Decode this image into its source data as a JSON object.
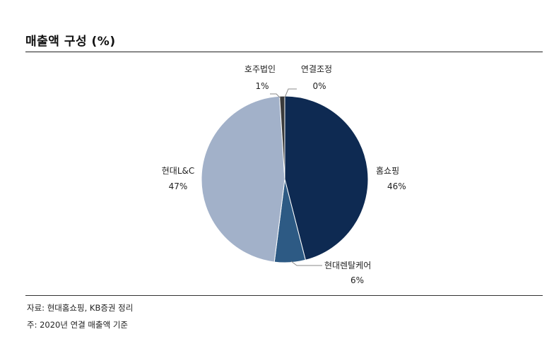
{
  "header": {
    "title": "매출액 구성 (%)"
  },
  "footer": {
    "source": "자료: 현대홈쇼핑, KB증권 정리",
    "note": "주: 2020년 연결 매출액 기준"
  },
  "chart_data": {
    "type": "pie",
    "title": "매출액 구성 (%)",
    "start_angle_deg": 0,
    "direction": "clockwise",
    "slices": [
      {
        "name": "홈쇼핑",
        "value": 46,
        "label": "46%",
        "color": "#0e2a52"
      },
      {
        "name": "현대렌탈케어",
        "value": 6,
        "label": "6%",
        "color": "#2d5a84"
      },
      {
        "name": "현대L&C",
        "value": 47,
        "label": "47%",
        "color": "#a2b1c9"
      },
      {
        "name": "호주법인",
        "value": 1,
        "label": "1%",
        "color": "#3a3a3a"
      },
      {
        "name": "연결조정",
        "value": 0,
        "label": "0%",
        "color": "#ffffff"
      }
    ]
  }
}
